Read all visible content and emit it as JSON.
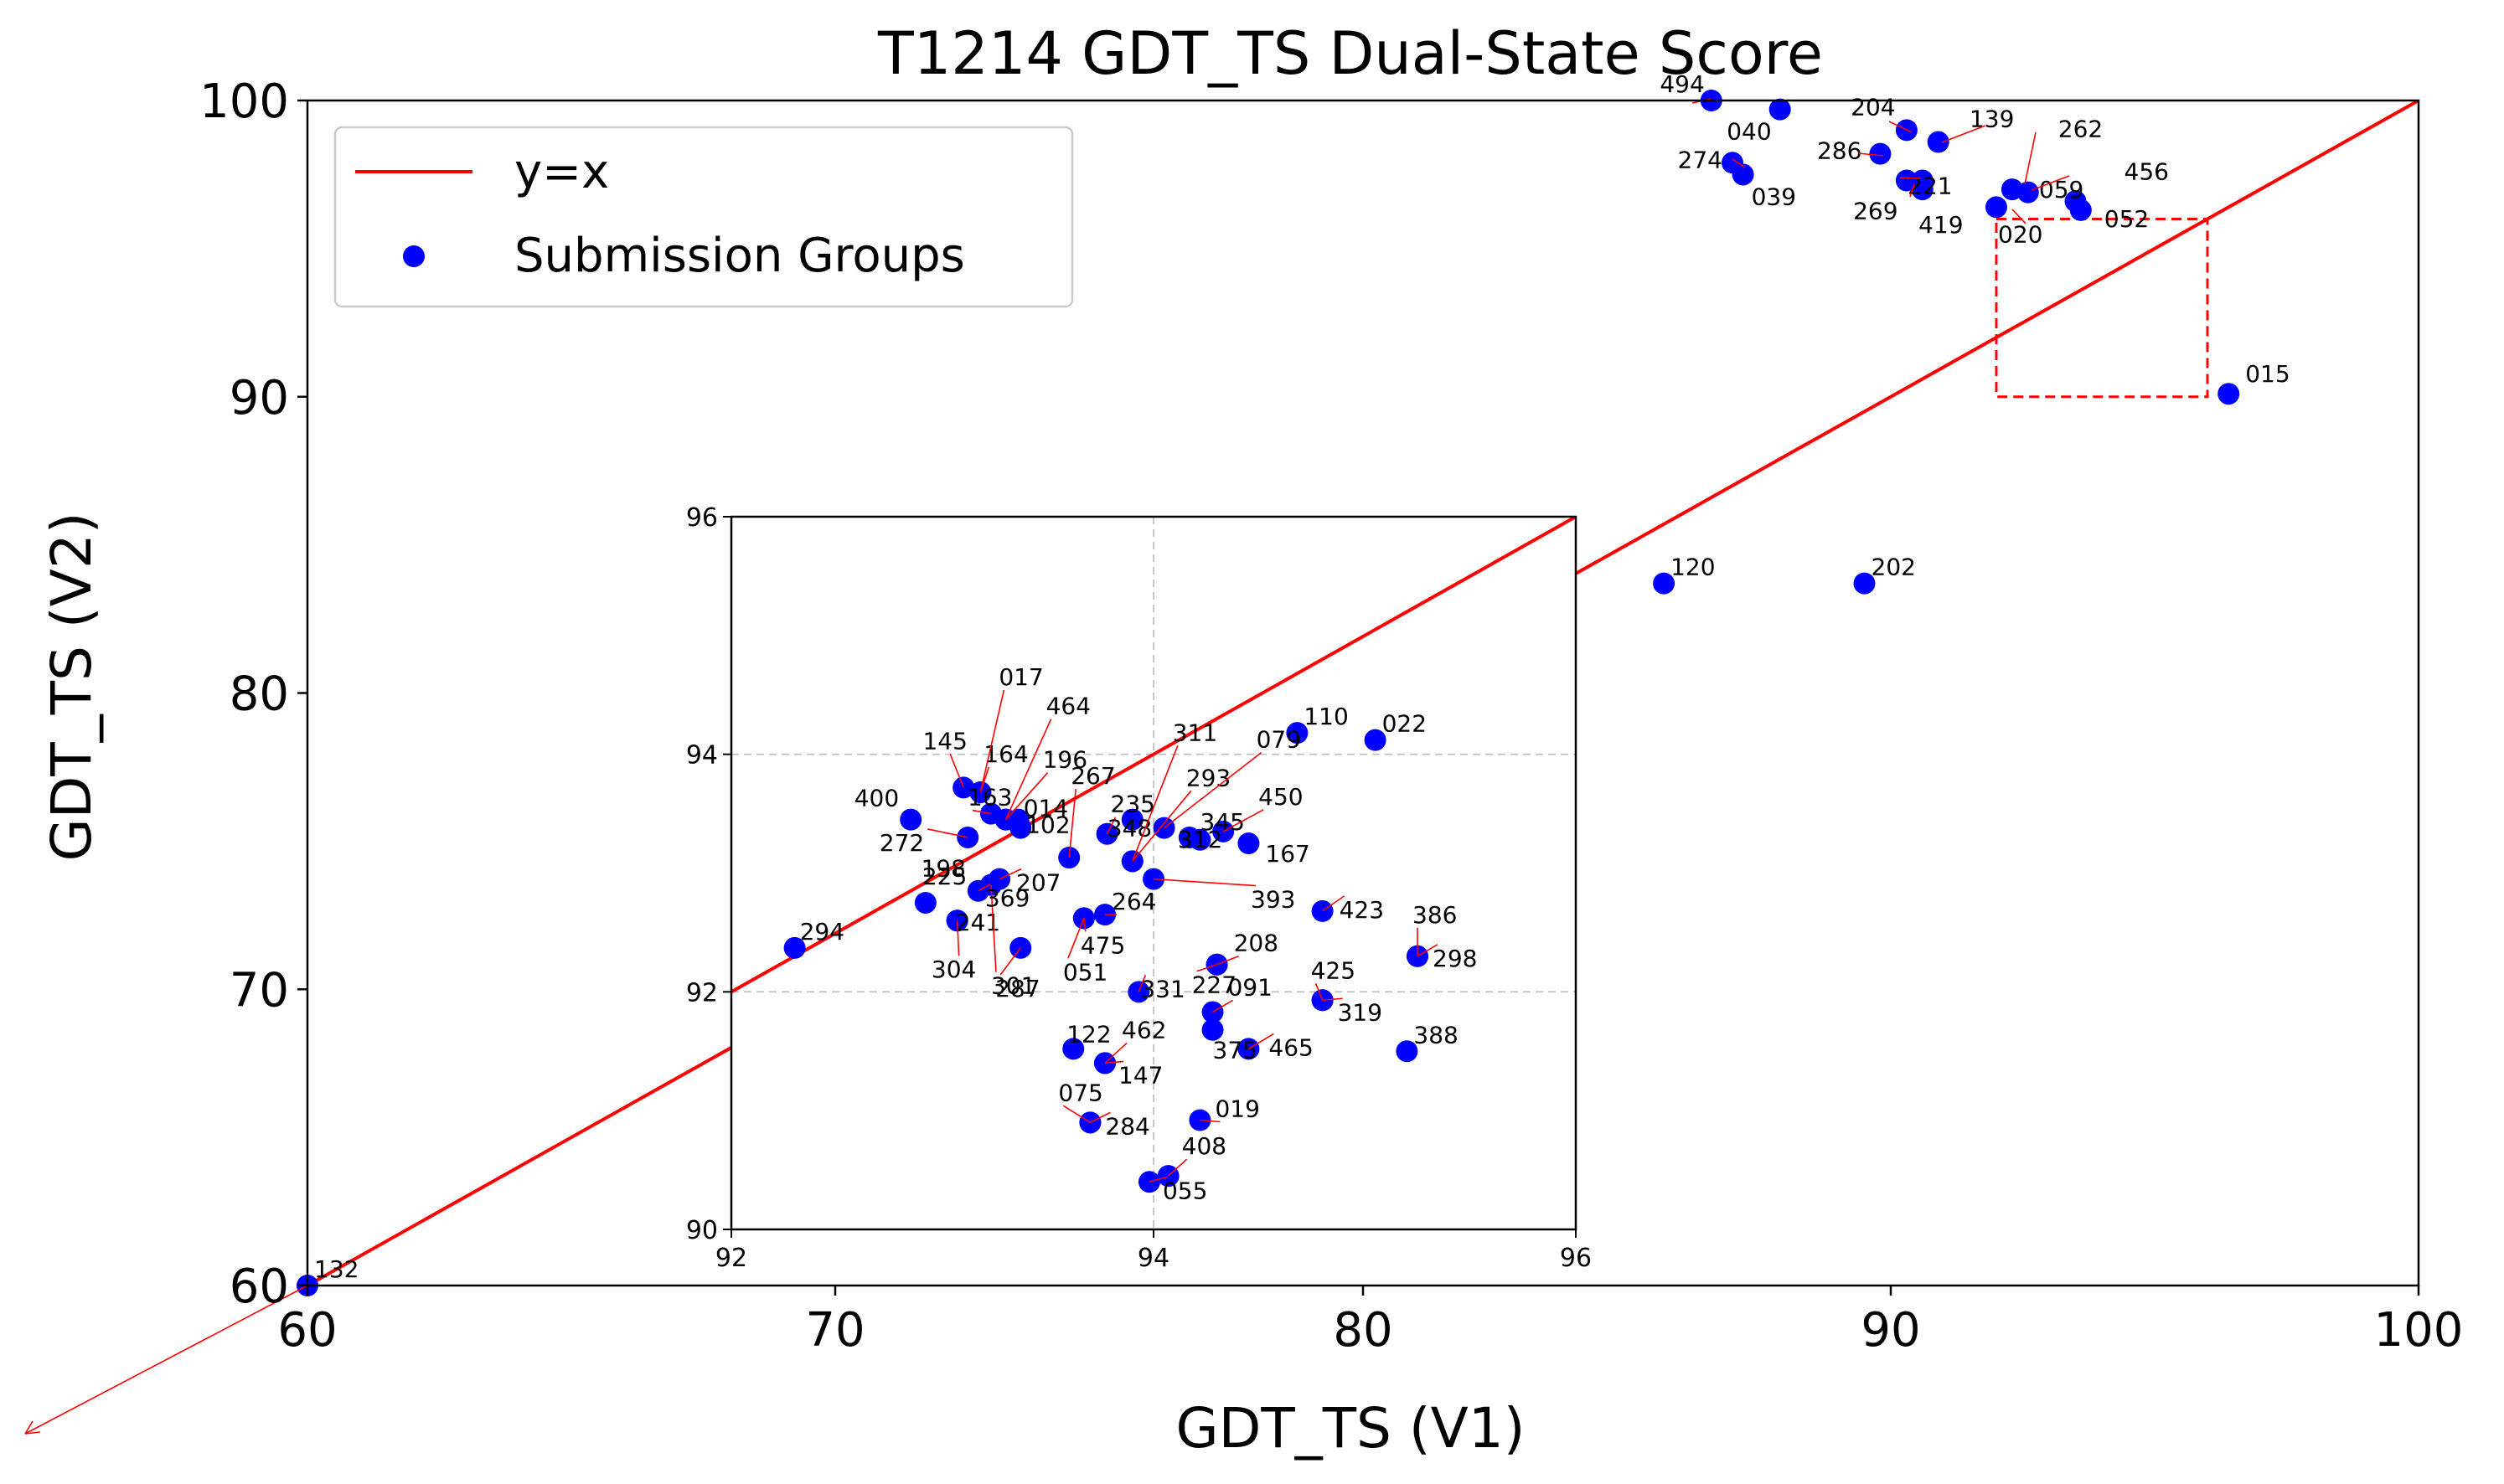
{
  "chart_data": {
    "type": "scatter",
    "title": "T1214 GDT_TS Dual-State Score",
    "xlabel": "GDT_TS (V1)",
    "ylabel": "GDT_TS (V2)",
    "xlim": [
      60,
      100
    ],
    "ylim": [
      60,
      100
    ],
    "xticks": [
      "60",
      "70",
      "80",
      "90",
      "100"
    ],
    "yticks": [
      "60",
      "70",
      "80",
      "90",
      "100"
    ],
    "legend": {
      "placement": "top-left",
      "entries": [
        {
          "label": "y=x",
          "color": "#ff0000",
          "marker": "line"
        },
        {
          "label": "Submission Groups",
          "color": "#0000ff",
          "marker": "dot"
        }
      ]
    },
    "reference_line": {
      "label": "y=x",
      "color": "#ff0000"
    },
    "zoom_box": {
      "x": [
        92,
        96
      ],
      "y": [
        90,
        96
      ],
      "color": "#ff0000"
    },
    "series": [
      {
        "label": "Submission Groups",
        "color": "#0000ff",
        "points": [
          {
            "x": 86.6,
            "y": 100.0,
            "label": "494"
          },
          {
            "x": 87.9,
            "y": 99.7,
            "label": "040"
          },
          {
            "x": 87.0,
            "y": 97.9,
            "label": "274"
          },
          {
            "x": 87.2,
            "y": 97.5,
            "label": "039"
          },
          {
            "x": 90.3,
            "y": 99.0,
            "label": "204"
          },
          {
            "x": 90.9,
            "y": 98.6,
            "label": "139"
          },
          {
            "x": 89.8,
            "y": 98.2,
            "label": "286"
          },
          {
            "x": 90.3,
            "y": 97.3,
            "label": "221"
          },
          {
            "x": 90.6,
            "y": 97.3,
            "label": "269"
          },
          {
            "x": 90.6,
            "y": 97.0,
            "label": "419"
          },
          {
            "x": 92.3,
            "y": 97.0,
            "label": "059"
          },
          {
            "x": 92.6,
            "y": 96.9,
            "label": "262"
          },
          {
            "x": 93.5,
            "y": 96.6,
            "label": "456"
          },
          {
            "x": 92.0,
            "y": 96.4,
            "label": "020"
          },
          {
            "x": 93.6,
            "y": 96.3,
            "label": "052"
          },
          {
            "x": 96.4,
            "y": 90.1,
            "label": "015"
          },
          {
            "x": 85.7,
            "y": 83.7,
            "label": "120"
          },
          {
            "x": 89.5,
            "y": 83.7,
            "label": "202"
          },
          {
            "x": 60.0,
            "y": 60.0,
            "label": "132"
          }
        ]
      }
    ],
    "inset": {
      "xlim": [
        92,
        96
      ],
      "ylim": [
        90,
        96
      ],
      "xticks": [
        "92",
        "94",
        "96"
      ],
      "yticks": [
        "90",
        "92",
        "94",
        "96"
      ],
      "grid": true,
      "points": [
        {
          "x": 92.3,
          "y": 92.37,
          "label": "294"
        },
        {
          "x": 92.85,
          "y": 93.45,
          "label": "400"
        },
        {
          "x": 92.92,
          "y": 92.75,
          "label": "225"
        },
        {
          "x": 93.07,
          "y": 92.6,
          "label": "241"
        },
        {
          "x": 93.07,
          "y": 92.6,
          "label": "304"
        },
        {
          "x": 93.12,
          "y": 93.3,
          "label": "272"
        },
        {
          "x": 93.1,
          "y": 93.72,
          "label": "145"
        },
        {
          "x": 93.18,
          "y": 93.68,
          "label": "164"
        },
        {
          "x": 93.18,
          "y": 93.68,
          "label": "017"
        },
        {
          "x": 93.23,
          "y": 93.5,
          "label": "163"
        },
        {
          "x": 93.3,
          "y": 93.45,
          "label": "196"
        },
        {
          "x": 93.3,
          "y": 93.45,
          "label": "464"
        },
        {
          "x": 93.36,
          "y": 93.45,
          "label": "014"
        },
        {
          "x": 93.23,
          "y": 92.9,
          "label": "198"
        },
        {
          "x": 93.23,
          "y": 92.9,
          "label": "301"
        },
        {
          "x": 93.27,
          "y": 92.95,
          "label": "207"
        },
        {
          "x": 93.17,
          "y": 92.85,
          "label": "369"
        },
        {
          "x": 93.37,
          "y": 92.37,
          "label": "287"
        },
        {
          "x": 93.37,
          "y": 93.38,
          "label": "102"
        },
        {
          "x": 93.6,
          "y": 93.13,
          "label": "267"
        },
        {
          "x": 93.67,
          "y": 92.62,
          "label": "475"
        },
        {
          "x": 93.67,
          "y": 92.62,
          "label": "051"
        },
        {
          "x": 93.77,
          "y": 92.65,
          "label": "264"
        },
        {
          "x": 93.78,
          "y": 93.33,
          "label": "235"
        },
        {
          "x": 93.9,
          "y": 93.45,
          "label": "348"
        },
        {
          "x": 93.9,
          "y": 93.1,
          "label": "311"
        },
        {
          "x": 93.9,
          "y": 93.1,
          "label": "293"
        },
        {
          "x": 94.0,
          "y": 92.95,
          "label": "393"
        },
        {
          "x": 93.93,
          "y": 92.0,
          "label": "331"
        },
        {
          "x": 94.05,
          "y": 93.38,
          "label": "079"
        },
        {
          "x": 94.17,
          "y": 93.3,
          "label": "312"
        },
        {
          "x": 94.22,
          "y": 93.28,
          "label": "345"
        },
        {
          "x": 94.33,
          "y": 93.35,
          "label": "450"
        },
        {
          "x": 94.45,
          "y": 93.25,
          "label": "167"
        },
        {
          "x": 94.3,
          "y": 92.23,
          "label": "227"
        },
        {
          "x": 94.3,
          "y": 92.23,
          "label": "208"
        },
        {
          "x": 94.28,
          "y": 91.83,
          "label": "091"
        },
        {
          "x": 94.28,
          "y": 91.68,
          "label": "375"
        },
        {
          "x": 94.45,
          "y": 91.52,
          "label": "465"
        },
        {
          "x": 94.68,
          "y": 94.18,
          "label": "110"
        },
        {
          "x": 95.05,
          "y": 94.12,
          "label": "022"
        },
        {
          "x": 94.8,
          "y": 92.68,
          "label": "423"
        },
        {
          "x": 95.25,
          "y": 92.3,
          "label": "386"
        },
        {
          "x": 95.25,
          "y": 92.3,
          "label": "298"
        },
        {
          "x": 94.8,
          "y": 91.93,
          "label": "425"
        },
        {
          "x": 94.8,
          "y": 91.93,
          "label": "319"
        },
        {
          "x": 95.2,
          "y": 91.5,
          "label": "388"
        },
        {
          "x": 93.62,
          "y": 91.52,
          "label": "122"
        },
        {
          "x": 93.77,
          "y": 91.4,
          "label": "462"
        },
        {
          "x": 93.77,
          "y": 91.4,
          "label": "147"
        },
        {
          "x": 93.7,
          "y": 90.9,
          "label": "075"
        },
        {
          "x": 93.7,
          "y": 90.9,
          "label": "284"
        },
        {
          "x": 94.22,
          "y": 90.92,
          "label": "019"
        },
        {
          "x": 94.07,
          "y": 90.45,
          "label": "408"
        },
        {
          "x": 93.98,
          "y": 90.4,
          "label": "055"
        }
      ]
    }
  }
}
